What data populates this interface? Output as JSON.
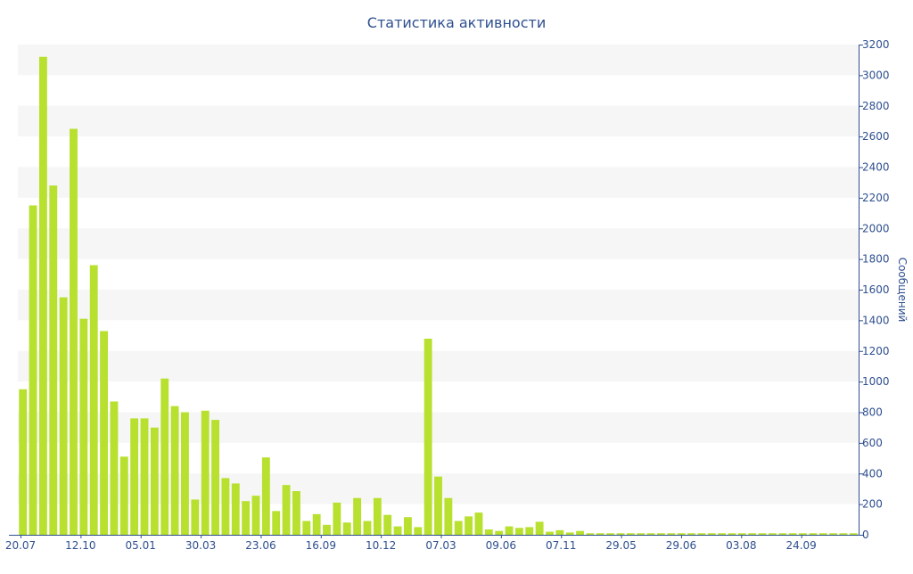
{
  "chart_data": {
    "type": "bar",
    "title": "Статистика активности",
    "ylabel": "Сообщений",
    "ylim": [
      0,
      3200
    ],
    "y_ticks": [
      0,
      200,
      400,
      600,
      800,
      1000,
      1200,
      1400,
      1600,
      1800,
      2000,
      2200,
      2400,
      2600,
      2800,
      3000,
      3200
    ],
    "x_tick_labels": [
      "20.07",
      "12.10",
      "05.01",
      "30.03",
      "23.06",
      "16.09",
      "10.12",
      "07.03",
      "09.06",
      "07.11",
      "29.05",
      "29.06",
      "03.08",
      "24.09"
    ],
    "values": [
      950,
      2150,
      3120,
      2280,
      1550,
      2650,
      1410,
      1760,
      1330,
      870,
      510,
      760,
      760,
      700,
      1020,
      840,
      800,
      230,
      810,
      750,
      370,
      335,
      220,
      255,
      505,
      155,
      325,
      285,
      90,
      135,
      65,
      210,
      80,
      240,
      90,
      240,
      130,
      55,
      115,
      50,
      1280,
      380,
      240,
      90,
      120,
      145,
      35,
      25,
      55,
      45,
      50,
      85,
      20,
      30,
      15,
      25,
      10,
      10,
      10,
      10,
      10,
      10,
      10,
      10,
      10,
      10,
      10,
      10,
      10,
      10,
      10,
      10,
      10,
      10,
      10,
      10,
      10,
      10,
      10,
      10,
      10,
      10,
      10
    ],
    "grid": "alternating horizontal bands",
    "y_axis_side": "right",
    "colors": {
      "bar": "#b8e02e",
      "text": "#2e4f8f",
      "band": "#f6f6f6",
      "axis": "#2e4f8f"
    }
  }
}
